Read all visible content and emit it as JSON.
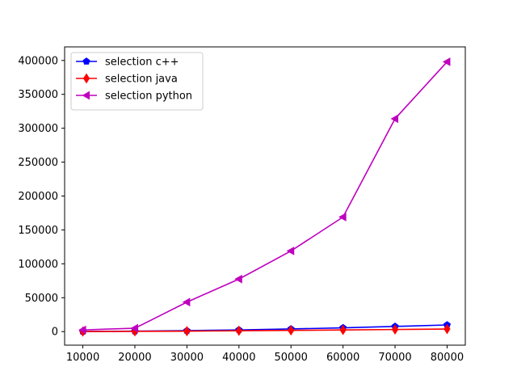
{
  "chart_data": {
    "type": "line",
    "title": "",
    "xlabel": "",
    "ylabel": "",
    "x": [
      10000,
      20000,
      30000,
      40000,
      50000,
      60000,
      70000,
      80000
    ],
    "xlim": [
      6500,
      83500
    ],
    "ylim": [
      -20000,
      420000
    ],
    "xticks": [
      10000,
      20000,
      30000,
      40000,
      50000,
      60000,
      70000,
      80000
    ],
    "yticks": [
      0,
      50000,
      100000,
      150000,
      200000,
      250000,
      300000,
      350000,
      400000
    ],
    "grid": false,
    "legend_position": "top-left",
    "series": [
      {
        "name": "selection c++",
        "color": "#0000ff",
        "marker": "pentagon",
        "values": [
          150,
          600,
          1400,
          2500,
          3900,
          5600,
          7600,
          9800
        ]
      },
      {
        "name": "selection java",
        "color": "#ff0000",
        "marker": "thin-diamond",
        "values": [
          100,
          300,
          700,
          1200,
          1800,
          2400,
          3100,
          3800
        ]
      },
      {
        "name": "selection python",
        "color": "#bf00bf",
        "marker": "triangle-left",
        "values": [
          2500,
          5000,
          43500,
          77500,
          119000,
          169000,
          314000,
          398000
        ]
      }
    ]
  }
}
